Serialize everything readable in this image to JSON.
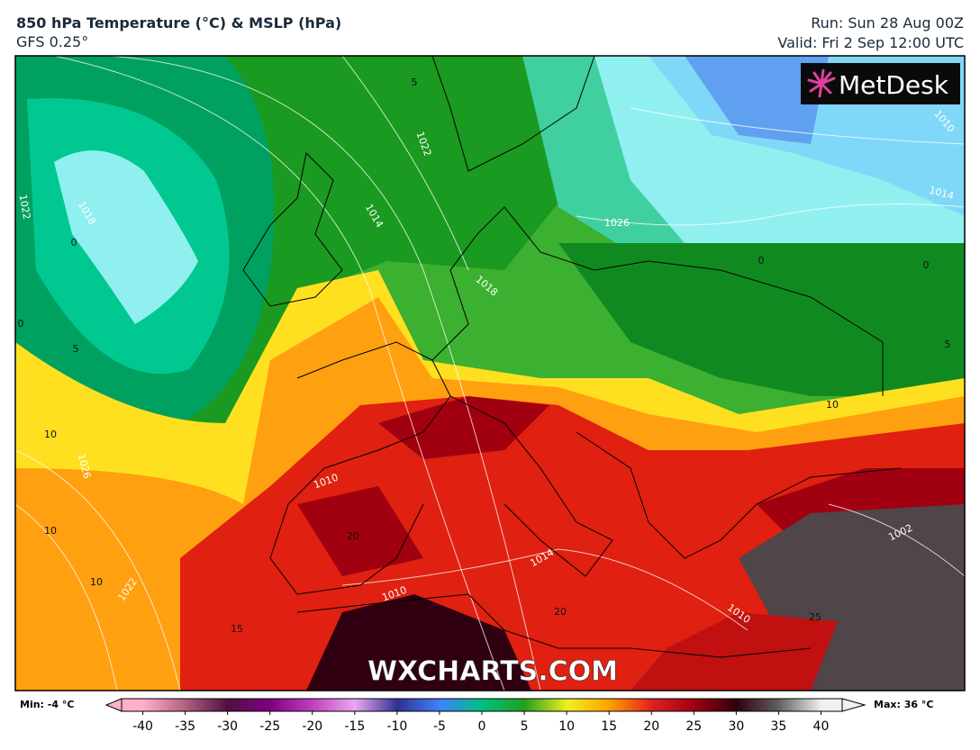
{
  "header": {
    "title": "850 hPa Temperature (°C) & MSLP (hPa)",
    "subtitle": "GFS 0.25°",
    "run": "Run: Sun 28 Aug 00Z",
    "valid": "Valid: Fri 2 Sep 12:00 UTC"
  },
  "logo": "MetDesk",
  "watermark": "WXCHARTS.COM",
  "map": {
    "labels": [
      1022,
      1014,
      1018,
      1026,
      1010,
      1014,
      0,
      0,
      0,
      5,
      5,
      10,
      10,
      10,
      10,
      1026,
      1022,
      15,
      20,
      20,
      1014,
      1010,
      1010,
      1002,
      25,
      5,
      1022,
      0,
      1018,
      1010
    ]
  },
  "legend": {
    "min_label": "Min: -4 °C",
    "max_label": "Max: 36 °C",
    "lim": [
      -42.5,
      42.5
    ],
    "ticks": [
      -40,
      -35,
      -30,
      -25,
      -20,
      -15,
      -10,
      -5,
      0,
      5,
      10,
      15,
      20,
      25,
      30,
      35,
      40
    ],
    "colors": [
      "#ffb0c8",
      "#b06080",
      "#501040",
      "#800080",
      "#c040c0",
      "#e8a8f0",
      "#303090",
      "#4080ff",
      "#00c080",
      "#20a020",
      "#f0f020",
      "#ffa000",
      "#e02020",
      "#a00010",
      "#300010",
      "#606060",
      "#f0f0f0"
    ]
  }
}
